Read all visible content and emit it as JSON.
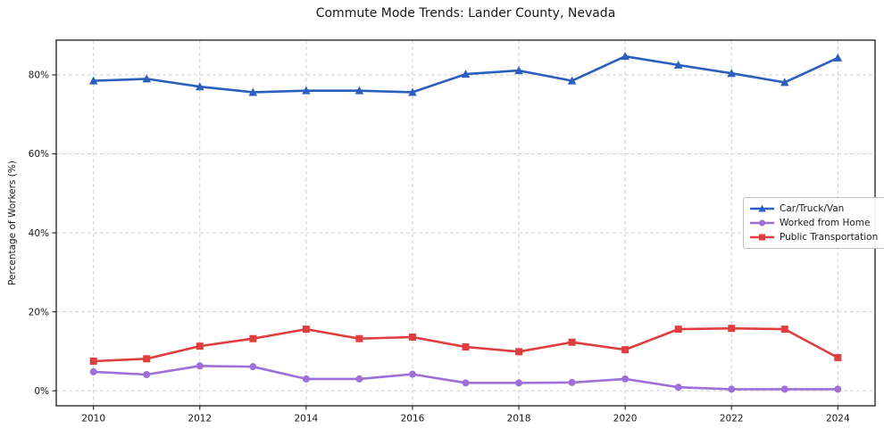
{
  "chart_data": {
    "type": "line",
    "title": "Commute Mode Trends: Lander County, Nevada",
    "xlabel": "",
    "ylabel": "Percentage of Workers (%)",
    "x": [
      2010,
      2011,
      2012,
      2013,
      2014,
      2015,
      2016,
      2017,
      2018,
      2019,
      2020,
      2021,
      2022,
      2023,
      2024
    ],
    "x_ticks": [
      2010,
      2012,
      2014,
      2016,
      2018,
      2020,
      2022,
      2024
    ],
    "y_ticks": [
      0,
      20,
      40,
      60,
      80
    ],
    "y_tick_suffix": "%",
    "xlim": [
      2009.3,
      2024.7
    ],
    "ylim": [
      -3.8,
      88.8
    ],
    "grid": true,
    "grid_style": "dashed",
    "legend_position": "middle-right",
    "series": [
      {
        "name": "Car/Truck/Van",
        "color": "#2c5fbd",
        "marker": "triangle",
        "values": [
          78.5,
          79.0,
          77.0,
          75.6,
          76.0,
          76.0,
          75.6,
          80.2,
          81.1,
          78.5,
          84.7,
          82.5,
          80.4,
          78.1,
          84.3
        ]
      },
      {
        "name": "Worked from Home",
        "color": "#9e6fd8",
        "marker": "circle",
        "values": [
          4.8,
          4.1,
          6.3,
          6.1,
          3.0,
          3.0,
          4.2,
          2.0,
          2.0,
          2.1,
          3.0,
          0.9,
          0.4,
          0.4,
          0.4
        ]
      },
      {
        "name": "Public Transportation",
        "color": "#e03e3e",
        "marker": "square",
        "values": [
          7.5,
          8.1,
          11.3,
          13.2,
          15.6,
          13.2,
          13.6,
          11.1,
          9.9,
          12.3,
          10.4,
          15.6,
          15.8,
          15.6,
          8.4
        ]
      }
    ]
  },
  "axes": {
    "grid_color": "#d2d2d2",
    "spine_color": "#1c1c1c",
    "tick_text_color": "#1a1a1a",
    "background": "#ffffff"
  }
}
